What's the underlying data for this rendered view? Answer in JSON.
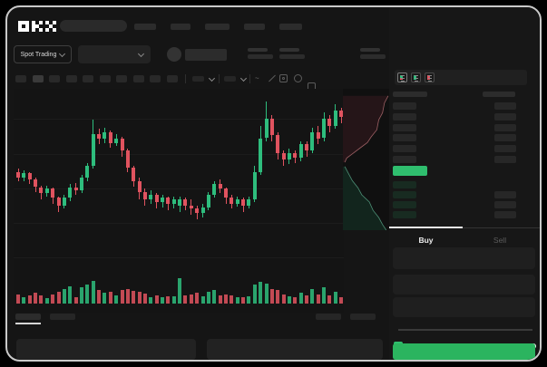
{
  "brand": {
    "name": "OKX",
    "logo_glyphs": {
      "O": [
        1,
        1,
        1,
        1,
        0,
        1,
        1,
        1,
        1
      ],
      "K": [
        1,
        0,
        1,
        1,
        1,
        0,
        1,
        0,
        1
      ],
      "X": [
        1,
        0,
        1,
        0,
        1,
        0,
        1,
        0,
        1
      ]
    }
  },
  "header": {
    "nav_placeholder_widths": [
      24,
      22,
      27,
      23,
      25
    ]
  },
  "market_bar": {
    "market_selector_label": "Spot Trading",
    "stat_group_positions": [
      265,
      300,
      389,
      454,
      509
    ]
  },
  "toolbar": {
    "interval_count": 10,
    "selected_index": 1
  },
  "order_book": {
    "view_modes": [
      "combined-book",
      "bids-only",
      "asks-only"
    ],
    "ask_row_count": 6,
    "bid_row_count": 4,
    "bid_right_bar_rows": [
      1,
      2,
      3
    ]
  },
  "trade_panel": {
    "buy_label": "Buy",
    "sell_label": "Sell",
    "active_tab": "Buy",
    "field_count": 3,
    "slider_stop_count": 5
  },
  "colors": {
    "up_green": "#2ebd7d",
    "down_red": "#e0535f",
    "price_row_green": "#2fbe6e",
    "buy_button_green": "#2bb45f",
    "bid_row_tint": "#182b21",
    "depth_ask_fill": "#251518",
    "depth_ask_line": "#9c5f63",
    "depth_bid_fill": "#12251d",
    "depth_bid_line": "#4d8f76"
  },
  "chart_data": [
    {
      "type": "candlestick",
      "title": "",
      "note": "no axis tick labels visible in screenshot; prices in relative units 0-100, volume 0-100",
      "grid": true,
      "columns": [
        "open",
        "high",
        "low",
        "close",
        "volume"
      ],
      "candles": [
        [
          48,
          50,
          42,
          44,
          35
        ],
        [
          44,
          49,
          42,
          47,
          25
        ],
        [
          47,
          48,
          40,
          43,
          30
        ],
        [
          43,
          44,
          35,
          38,
          40
        ],
        [
          38,
          39,
          30,
          34,
          30
        ],
        [
          34,
          39,
          32,
          37,
          20
        ],
        [
          37,
          38,
          27,
          31,
          35
        ],
        [
          31,
          32,
          22,
          26,
          45
        ],
        [
          26,
          33,
          24,
          31,
          55
        ],
        [
          31,
          40,
          29,
          38,
          65
        ],
        [
          38,
          41,
          33,
          36,
          22
        ],
        [
          36,
          46,
          34,
          44,
          60
        ],
        [
          44,
          54,
          42,
          52,
          70
        ],
        [
          52,
          82,
          50,
          73,
          85
        ],
        [
          73,
          76,
          66,
          70,
          50
        ],
        [
          70,
          77,
          67,
          74,
          40
        ],
        [
          74,
          75,
          64,
          67,
          45
        ],
        [
          67,
          73,
          65,
          70,
          30
        ],
        [
          70,
          71,
          58,
          62,
          50
        ],
        [
          62,
          63,
          48,
          51,
          55
        ],
        [
          51,
          52,
          38,
          42,
          48
        ],
        [
          42,
          44,
          30,
          35,
          42
        ],
        [
          35,
          37,
          26,
          30,
          38
        ],
        [
          30,
          36,
          27,
          33,
          25
        ],
        [
          33,
          34,
          24,
          28,
          30
        ],
        [
          28,
          33,
          25,
          31,
          22
        ],
        [
          31,
          32,
          23,
          27,
          28
        ],
        [
          27,
          32,
          24,
          30,
          26
        ],
        [
          26,
          32,
          22,
          30,
          95
        ],
        [
          30,
          31,
          23,
          26,
          30
        ],
        [
          26,
          30,
          20,
          24,
          35
        ],
        [
          24,
          26,
          17,
          21,
          40
        ],
        [
          21,
          27,
          18,
          25,
          28
        ],
        [
          25,
          35,
          23,
          33,
          45
        ],
        [
          33,
          42,
          31,
          40,
          50
        ],
        [
          40,
          43,
          34,
          37,
          30
        ],
        [
          37,
          38,
          27,
          31,
          35
        ],
        [
          31,
          33,
          24,
          27,
          30
        ],
        [
          27,
          32,
          25,
          30,
          22
        ],
        [
          30,
          31,
          22,
          26,
          25
        ],
        [
          26,
          32,
          24,
          30,
          28
        ],
        [
          30,
          52,
          28,
          48,
          70
        ],
        [
          48,
          78,
          46,
          70,
          80
        ],
        [
          70,
          94,
          68,
          83,
          75
        ],
        [
          83,
          85,
          68,
          72,
          55
        ],
        [
          72,
          74,
          56,
          60,
          50
        ],
        [
          60,
          62,
          52,
          56,
          35
        ],
        [
          56,
          63,
          53,
          60,
          28
        ],
        [
          60,
          62,
          54,
          57,
          22
        ],
        [
          57,
          68,
          55,
          66,
          40
        ],
        [
          66,
          68,
          58,
          62,
          30
        ],
        [
          62,
          77,
          60,
          74,
          55
        ],
        [
          74,
          78,
          66,
          70,
          35
        ],
        [
          70,
          87,
          68,
          83,
          60
        ],
        [
          83,
          85,
          74,
          78,
          30
        ],
        [
          78,
          92,
          76,
          88,
          45
        ],
        [
          88,
          90,
          80,
          84,
          25
        ]
      ]
    },
    {
      "type": "area",
      "name": "depth",
      "note": "vertical market depth beside order book; points normalized 0-1",
      "asks_line": [
        [
          0.96,
          0.05
        ],
        [
          0.88,
          0.1
        ],
        [
          0.84,
          0.17
        ],
        [
          0.76,
          0.22
        ],
        [
          0.72,
          0.29
        ],
        [
          0.6,
          0.34
        ],
        [
          0.52,
          0.38
        ],
        [
          0.36,
          0.42
        ],
        [
          0.2,
          0.46
        ],
        [
          0.08,
          0.49
        ],
        [
          0.04,
          0.52
        ]
      ],
      "bids_line": [
        [
          0.04,
          0.55
        ],
        [
          0.12,
          0.6
        ],
        [
          0.2,
          0.65
        ],
        [
          0.32,
          0.7
        ],
        [
          0.4,
          0.75
        ],
        [
          0.56,
          0.8
        ],
        [
          0.64,
          0.86
        ],
        [
          0.76,
          0.91
        ],
        [
          0.84,
          0.96
        ],
        [
          0.92,
          1.0
        ]
      ]
    }
  ]
}
